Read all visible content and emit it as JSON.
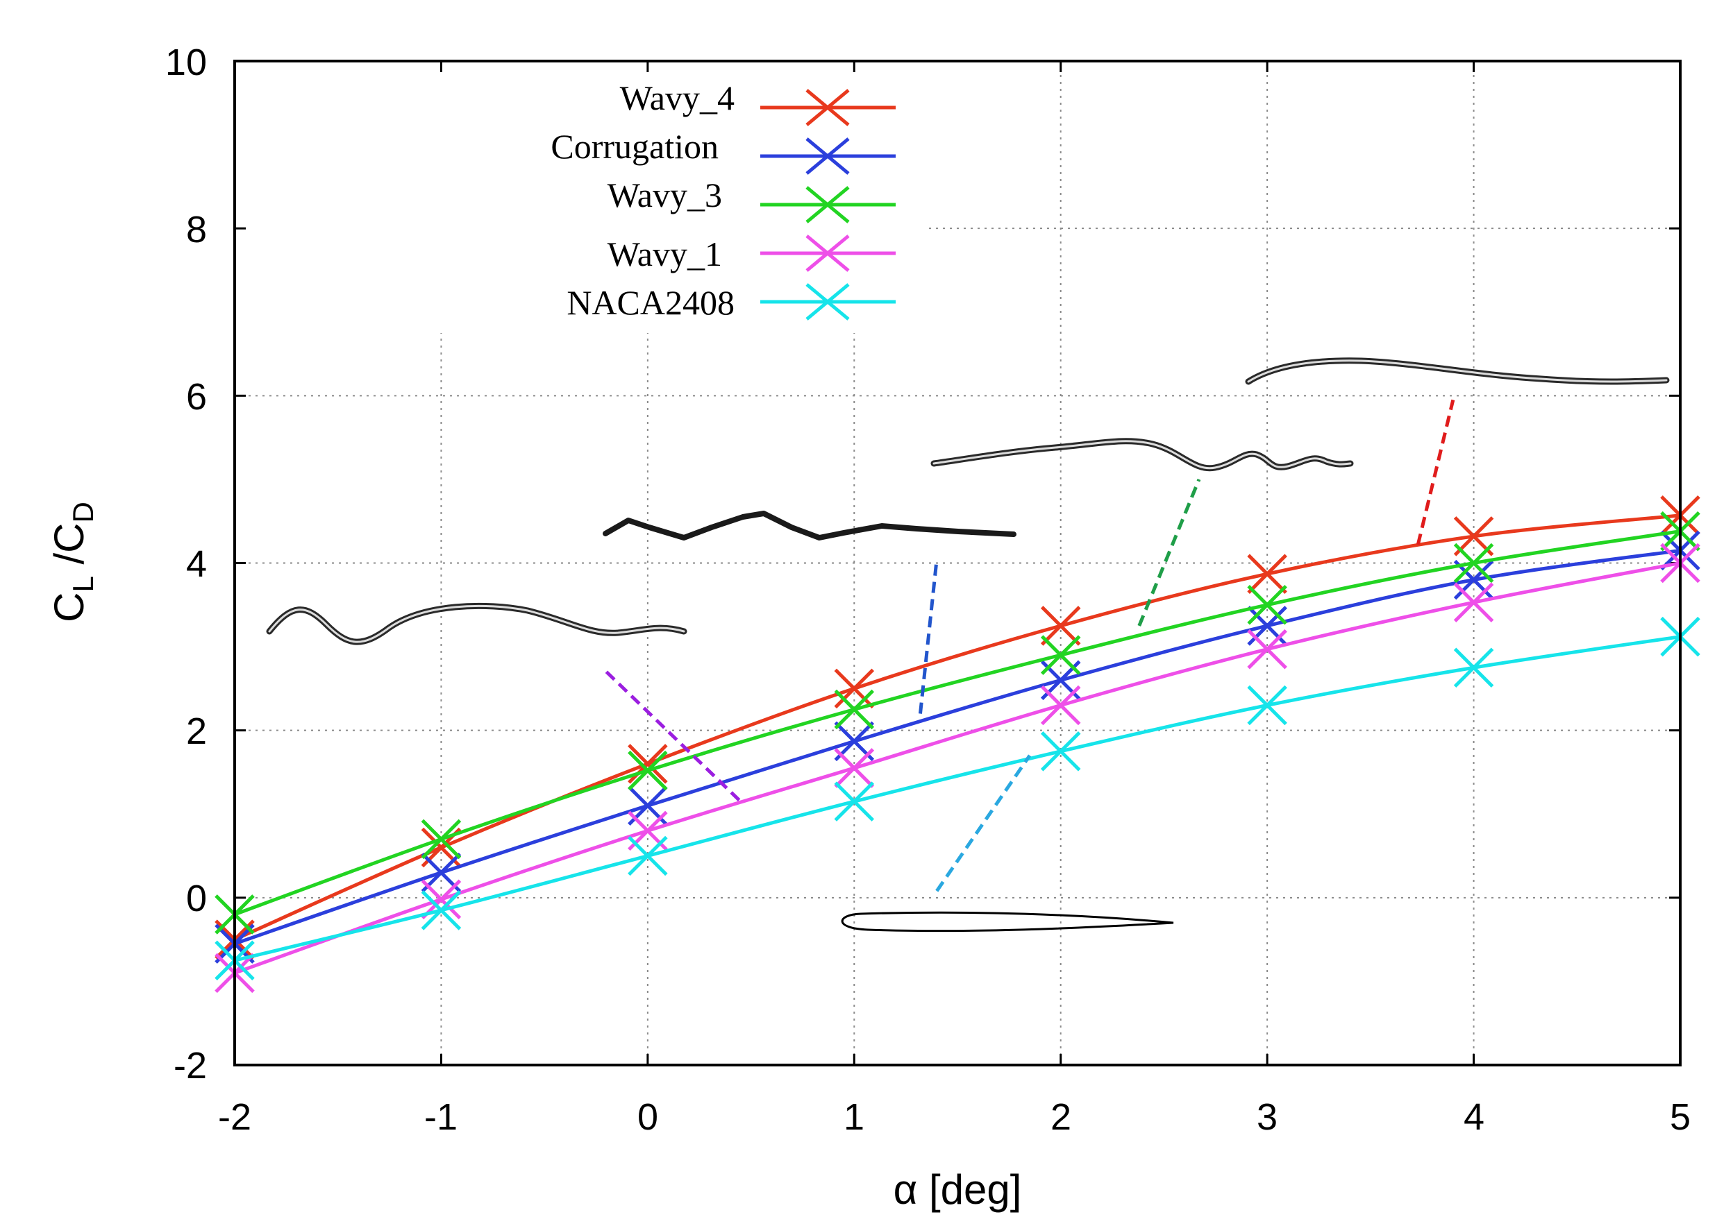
{
  "chart_data": {
    "type": "line",
    "title": "",
    "xlabel": "α [deg]",
    "ylabel_main": "C",
    "ylabel_sub1": "L",
    "ylabel_sep": " /C",
    "ylabel_sub2": "D",
    "xlim": [
      -2,
      5
    ],
    "ylim": [
      -2,
      10
    ],
    "xticks": [
      "-2",
      "-1",
      "0",
      "1",
      "2",
      "3",
      "4",
      "5"
    ],
    "yticks": [
      "-2",
      "0",
      "2",
      "4",
      "6",
      "8",
      "10"
    ],
    "grid": true,
    "legend_position": "top-left",
    "x": [
      -2,
      -1,
      0,
      1,
      2,
      3,
      4,
      5
    ],
    "series": [
      {
        "name": "Wavy_4",
        "color": "#e8391d",
        "values": [
          -0.5,
          0.6,
          1.6,
          2.5,
          3.25,
          3.87,
          4.32,
          4.57
        ]
      },
      {
        "name": "Corrugation",
        "color": "#2b3fdc",
        "values": [
          -0.55,
          0.3,
          1.1,
          1.87,
          2.6,
          3.25,
          3.8,
          4.15
        ]
      },
      {
        "name": "Wavy_3",
        "color": "#22d422",
        "values": [
          -0.2,
          0.7,
          1.52,
          2.25,
          2.9,
          3.5,
          4.0,
          4.38
        ]
      },
      {
        "name": "Wavy_1",
        "color": "#ee4fe8",
        "values": [
          -0.9,
          -0.02,
          0.8,
          1.55,
          2.3,
          2.97,
          3.53,
          4.0
        ]
      },
      {
        "name": "NACA2408",
        "color": "#16e4ea",
        "values": [
          -0.75,
          -0.15,
          0.5,
          1.15,
          1.75,
          2.3,
          2.75,
          3.12
        ]
      }
    ],
    "annotations": [
      {
        "name": "wavy-1-profile",
        "leader_color": "#9b1ee0",
        "leader_x": [
          -0.2,
          0.45
        ],
        "leader_y": [
          2.7,
          1.15
        ]
      },
      {
        "name": "corrugation-profile",
        "leader_color": "#2255cc",
        "leader_x": [
          1.32,
          1.4
        ],
        "leader_y": [
          2.2,
          4.05
        ]
      },
      {
        "name": "wavy-3-profile",
        "leader_color": "#1f9e48",
        "leader_x": [
          2.38,
          2.67
        ],
        "leader_y": [
          3.25,
          5.0
        ]
      },
      {
        "name": "wavy-4-profile",
        "leader_color": "#e01c1c",
        "leader_x": [
          3.73,
          3.9
        ],
        "leader_y": [
          4.22,
          5.95
        ]
      },
      {
        "name": "naca2408-profile",
        "leader_color": "#2aa8e0",
        "leader_x": [
          1.4,
          1.85
        ],
        "leader_y": [
          0.08,
          1.7
        ]
      }
    ]
  }
}
